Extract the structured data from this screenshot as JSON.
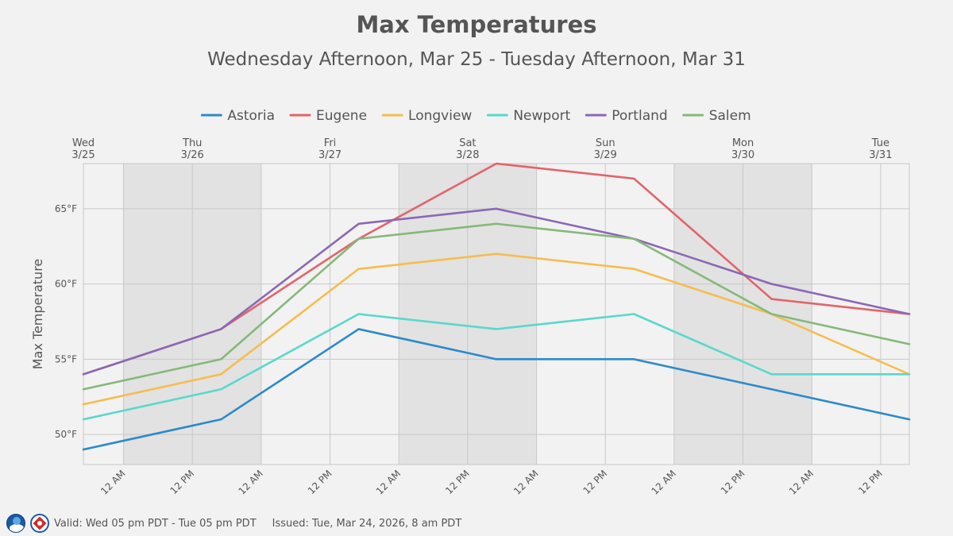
{
  "chart_data": {
    "type": "line",
    "title": "Max Temperatures",
    "subtitle": "Wednesday Afternoon, Mar 25 - Tuesday Afternoon, Mar 31",
    "ylabel": "Max Temperature",
    "ylim": [
      48,
      68
    ],
    "yticks": [
      50,
      55,
      60,
      65
    ],
    "ytick_suffix": "°F",
    "xlim_hours": [
      0,
      144
    ],
    "x_hours": [
      0,
      24,
      48,
      72,
      96,
      120,
      144
    ],
    "day_labels": [
      {
        "day": "Wed",
        "date": "3/25",
        "hour": 0
      },
      {
        "day": "Thu",
        "date": "3/26",
        "hour": 19
      },
      {
        "day": "Fri",
        "date": "3/27",
        "hour": 43
      },
      {
        "day": "Sat",
        "date": "3/28",
        "hour": 67
      },
      {
        "day": "Sun",
        "date": "3/29",
        "hour": 91
      },
      {
        "day": "Mon",
        "date": "3/30",
        "hour": 115
      },
      {
        "day": "Tue",
        "date": "3/31",
        "hour": 139
      }
    ],
    "time_ticks": [
      {
        "label": "12 AM",
        "hour": 7
      },
      {
        "label": "12 PM",
        "hour": 19
      },
      {
        "label": "12 AM",
        "hour": 31
      },
      {
        "label": "12 PM",
        "hour": 43
      },
      {
        "label": "12 AM",
        "hour": 55
      },
      {
        "label": "12 PM",
        "hour": 67
      },
      {
        "label": "12 AM",
        "hour": 79
      },
      {
        "label": "12 PM",
        "hour": 91
      },
      {
        "label": "12 AM",
        "hour": 103
      },
      {
        "label": "12 PM",
        "hour": 115
      },
      {
        "label": "12 AM",
        "hour": 127
      },
      {
        "label": "12 PM",
        "hour": 139
      }
    ],
    "shaded_bands_hours": [
      [
        7,
        31
      ],
      [
        55,
        79
      ],
      [
        103,
        127
      ]
    ],
    "series": [
      {
        "name": "Astoria",
        "color": "#2d8ac9",
        "values": [
          49,
          51,
          57,
          55,
          55,
          53,
          51
        ]
      },
      {
        "name": "Eugene",
        "color": "#e3646a",
        "values": [
          54,
          57,
          63,
          68,
          67,
          59,
          58
        ]
      },
      {
        "name": "Longview",
        "color": "#f5bd4f",
        "values": [
          52,
          54,
          61,
          62,
          61,
          58,
          54
        ]
      },
      {
        "name": "Newport",
        "color": "#5ad8cc",
        "values": [
          51,
          53,
          58,
          57,
          58,
          54,
          54
        ]
      },
      {
        "name": "Portland",
        "color": "#8b68b5",
        "values": [
          54,
          57,
          64,
          65,
          63,
          60,
          58
        ]
      },
      {
        "name": "Salem",
        "color": "#86b87a",
        "values": [
          53,
          55,
          63,
          64,
          63,
          58,
          56
        ]
      }
    ]
  },
  "footer": {
    "valid": "Valid: Wed 05 pm PDT - Tue 05 pm PDT",
    "issued": "Issued: Tue, Mar 24, 2026, 8 am PDT"
  }
}
